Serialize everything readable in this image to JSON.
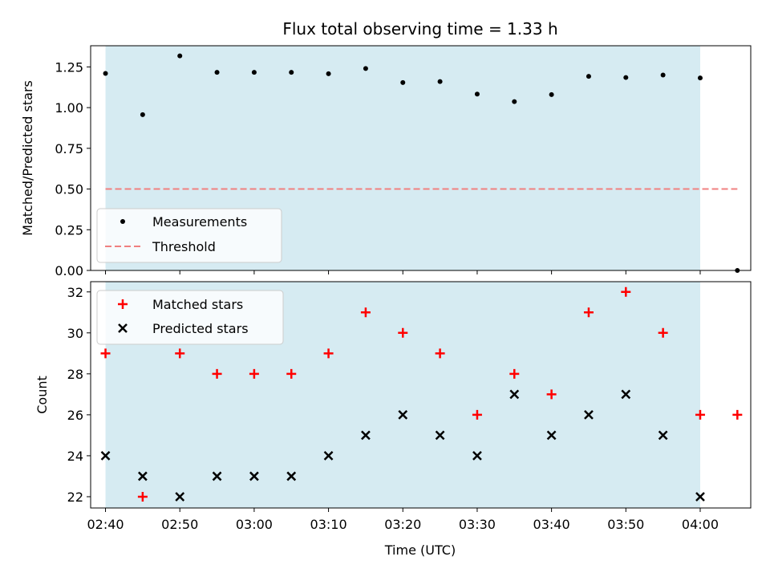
{
  "chart_data": [
    {
      "type": "scatter",
      "title": "Flux total observing time = 1.33 h",
      "xlabel": "",
      "ylabel": "Matched/Predicted stars",
      "ylim": [
        0,
        1.38
      ],
      "yticks": [
        "0.00",
        "0.25",
        "0.50",
        "0.75",
        "1.00",
        "1.25"
      ],
      "ytick_values": [
        0,
        0.25,
        0.5,
        0.75,
        1.0,
        1.25
      ],
      "x": [
        "02:40",
        "02:45",
        "02:50",
        "02:55",
        "03:00",
        "03:05",
        "03:10",
        "03:15",
        "03:20",
        "03:25",
        "03:30",
        "03:35",
        "03:40",
        "03:45",
        "03:50",
        "03:55",
        "04:00",
        "04:05"
      ],
      "series": [
        {
          "name": "Measurements",
          "marker": "dot",
          "color": "#000000",
          "values": [
            1.21,
            0.957,
            1.318,
            1.217,
            1.217,
            1.217,
            1.208,
            1.24,
            1.154,
            1.16,
            1.083,
            1.037,
            1.08,
            1.192,
            1.185,
            1.2,
            1.182,
            0.0
          ]
        },
        {
          "name": "Threshold",
          "line": "dashed",
          "color": "#f08080",
          "x_range": [
            "02:40",
            "04:05"
          ],
          "value": 0.5
        }
      ],
      "shaded_span": {
        "from": "02:40",
        "to": "04:00",
        "color": "#add8e6"
      },
      "legend": "lower-left",
      "grid": false
    },
    {
      "type": "scatter",
      "title": "",
      "xlabel": "Time (UTC)",
      "ylabel": "Count",
      "ylim": [
        21.45,
        32.5
      ],
      "yticks": [
        "22",
        "24",
        "26",
        "28",
        "30",
        "32"
      ],
      "ytick_values": [
        22,
        24,
        26,
        28,
        30,
        32
      ],
      "xticks": [
        "02:40",
        "02:50",
        "03:00",
        "03:10",
        "03:20",
        "03:30",
        "03:40",
        "03:50",
        "04:00"
      ],
      "x": [
        "02:40",
        "02:45",
        "02:50",
        "02:55",
        "03:00",
        "03:05",
        "03:10",
        "03:15",
        "03:20",
        "03:25",
        "03:30",
        "03:35",
        "03:40",
        "03:45",
        "03:50",
        "03:55",
        "04:00",
        "04:05"
      ],
      "series": [
        {
          "name": "Matched stars",
          "marker": "plus",
          "color": "#ff0000",
          "values": [
            29,
            22,
            29,
            28,
            28,
            28,
            29,
            31,
            30,
            29,
            26,
            28,
            27,
            31,
            32,
            30,
            26,
            26
          ]
        },
        {
          "name": "Predicted stars",
          "marker": "x",
          "color": "#000000",
          "values": [
            24,
            23,
            22,
            23,
            23,
            23,
            24,
            25,
            26,
            25,
            24,
            27,
            25,
            26,
            27,
            25,
            22,
            null
          ]
        }
      ],
      "shaded_span": {
        "from": "02:40",
        "to": "04:00",
        "color": "#add8e6"
      },
      "legend": "upper-left",
      "grid": false
    }
  ]
}
